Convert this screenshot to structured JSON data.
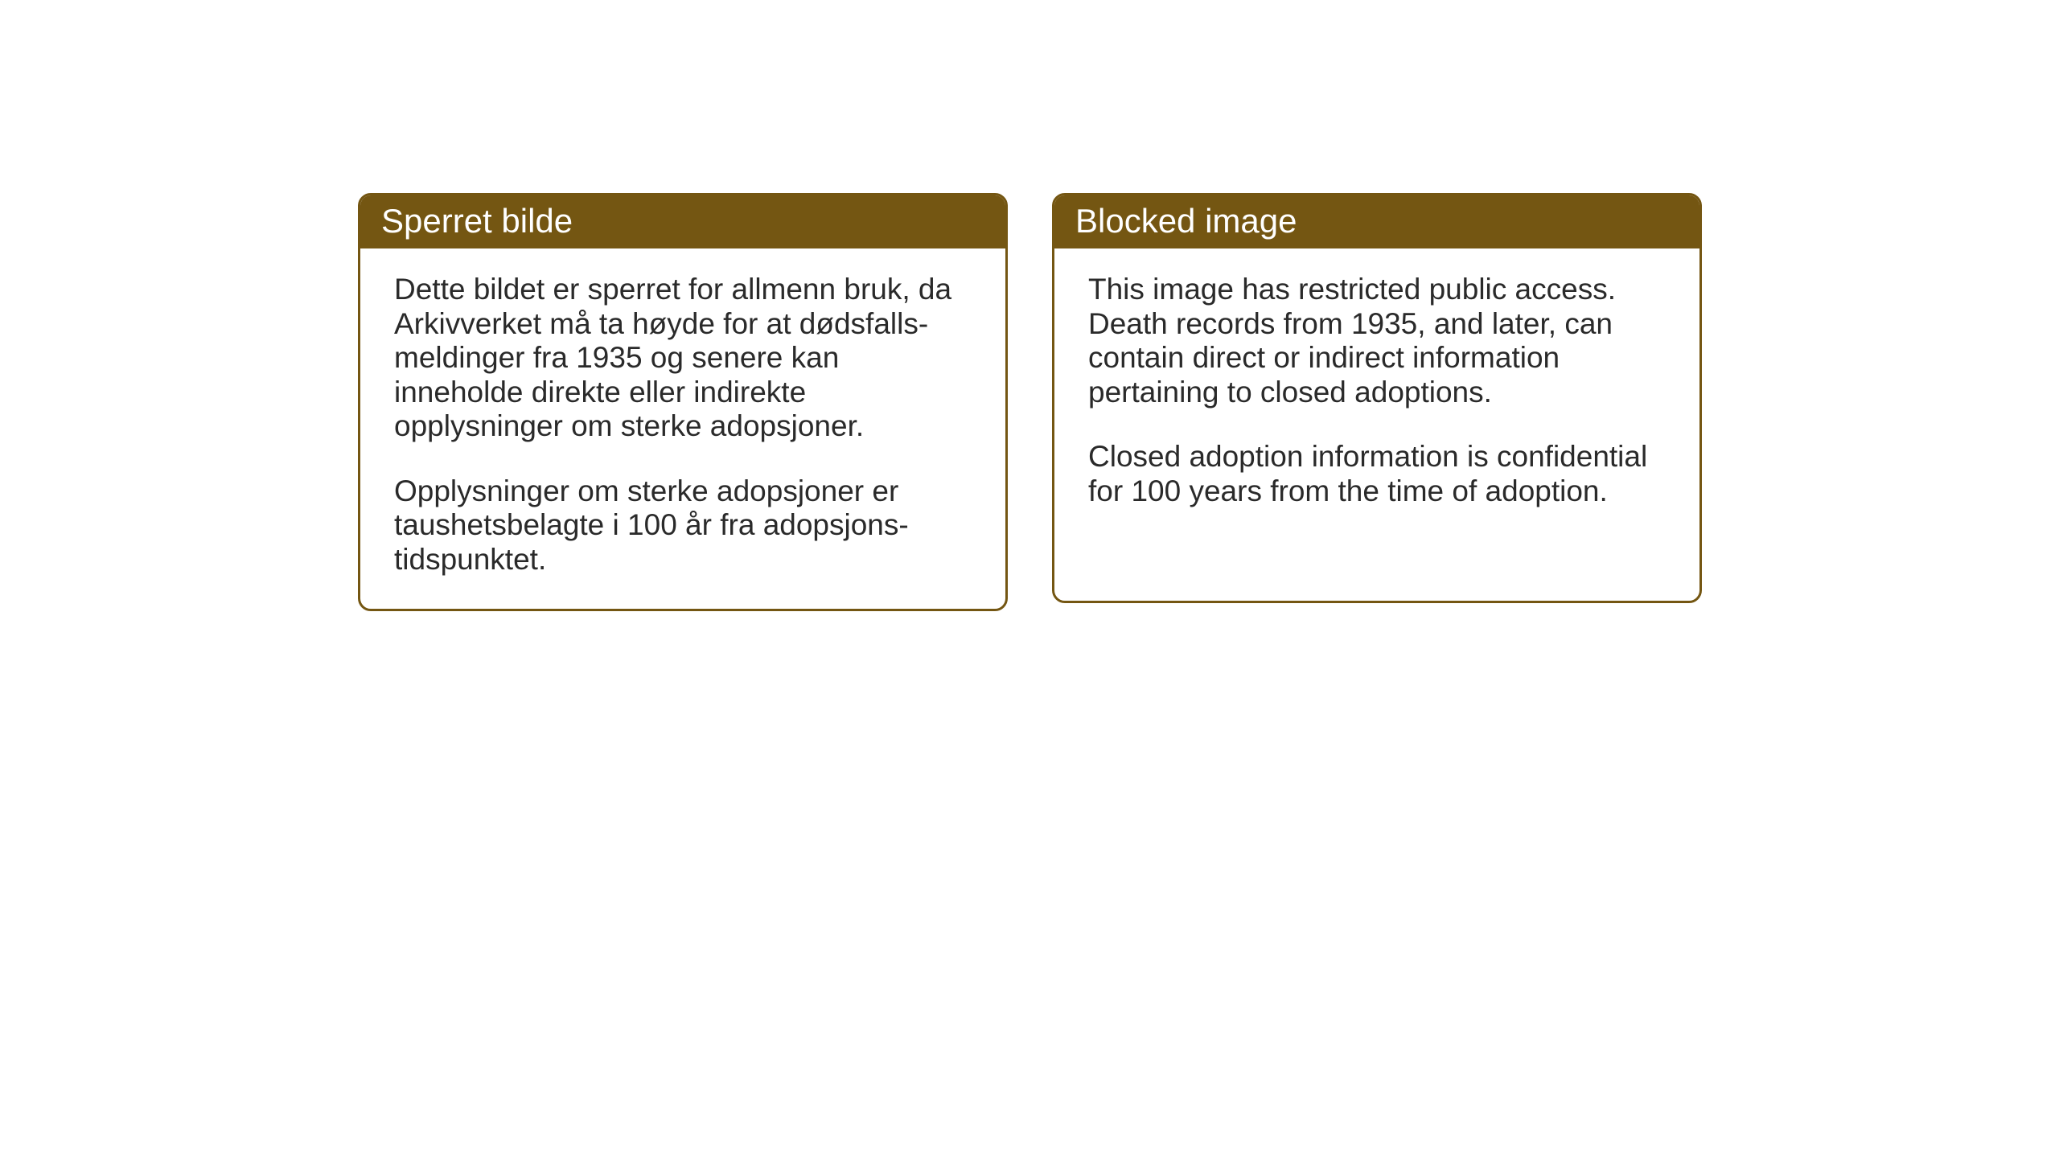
{
  "layout": {
    "background_color": "#ffffff",
    "box_border_color": "#745612",
    "box_border_width": 3,
    "box_border_radius": 16,
    "header_background_color": "#745612",
    "header_text_color": "#ffffff",
    "body_text_color": "#2a2a2a",
    "header_fontsize": 42,
    "body_fontsize": 37,
    "gap_between_boxes": 55
  },
  "boxes": {
    "left": {
      "title": "Sperret bilde",
      "paragraph1": "Dette bildet er sperret for allmenn bruk, da Arkivverket må ta høyde for at dødsfalls-meldinger fra 1935 og senere kan inneholde direkte eller indirekte opplysninger om sterke adopsjoner.",
      "paragraph2": "Opplysninger om sterke adopsjoner er taushetsbelagte i 100 år fra adopsjons-tidspunktet."
    },
    "right": {
      "title": "Blocked image",
      "paragraph1": "This image has restricted public access. Death records from 1935, and later, can contain direct or indirect information pertaining to closed adoptions.",
      "paragraph2": "Closed adoption information is confidential for 100 years from the time of adoption."
    }
  }
}
